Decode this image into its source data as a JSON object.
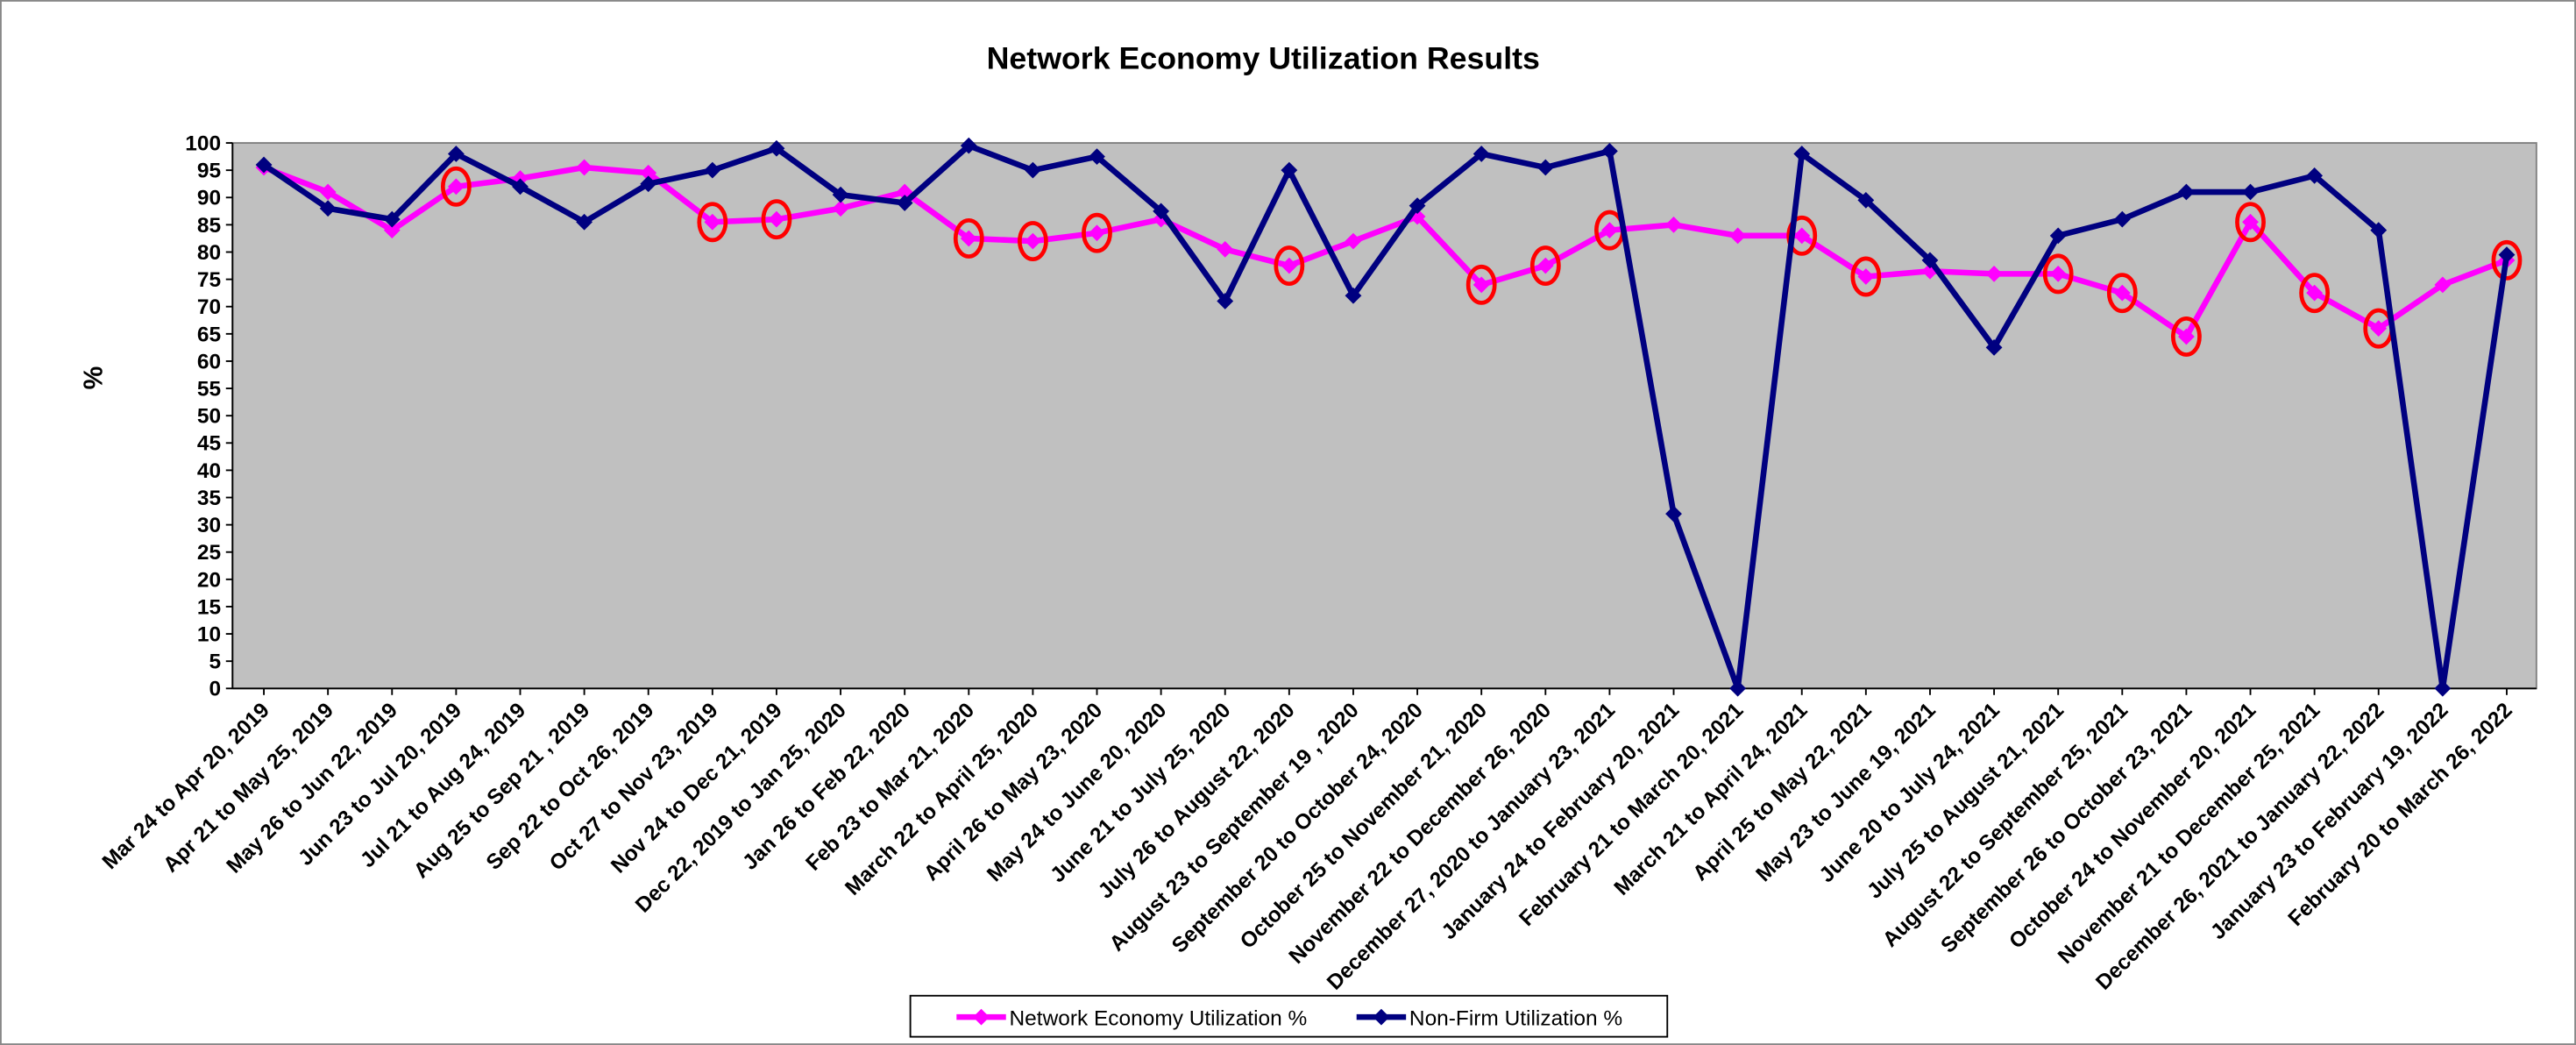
{
  "chart_data": {
    "type": "line",
    "title": "Network Economy Utilization Results",
    "y_label": "%",
    "categories": [
      "Mar 24 to Apr 20, 2019",
      "Apr 21 to May 25, 2019",
      "May 26 to Jun 22, 2019",
      "Jun 23 to Jul 20, 2019",
      "Jul 21 to Aug 24, 2019",
      "Aug 25 to Sep 21 , 2019",
      "Sep 22 to Oct 26, 2019",
      "Oct 27 to Nov 23, 2019",
      "Nov 24 to Dec 21, 2019",
      "Dec 22, 2019 to Jan 25, 2020",
      "Jan 26 to Feb 22, 2020",
      "Feb 23 to Mar 21, 2020",
      "March 22 to April 25, 2020",
      "April 26 to May 23, 2020",
      "May 24 to June 20, 2020",
      "June 21 to July 25, 2020",
      "July 26 to August 22, 2020",
      "August 23 to September 19 , 2020",
      "September 20 to October 24, 2020",
      "October 25 to November 21, 2020",
      "November 22 to December 26, 2020",
      "December 27, 2020 to January 23, 2021",
      "January 24 to February 20, 2021",
      "February 21 to March 20, 2021",
      "March 21 to April 24, 2021",
      "April 25 to May 22, 2021",
      "May 23 to June 19, 2021",
      "June 20 to July 24, 2021",
      "July 25 to August 21, 2021",
      "August 22 to September 25, 2021",
      "September 26 to October 23, 2021",
      "October 24 to November 20, 2021",
      "November 21 to December 25, 2021",
      "December 26, 2021 to January 22, 2022",
      "January 23 to February 19, 2022",
      "February 20 to March 26, 2022"
    ],
    "series": [
      {
        "name": "Network Economy Utilization %",
        "color": "#ff00ff",
        "values": [
          95.5,
          91,
          84,
          92,
          93.5,
          95.5,
          94.5,
          85.5,
          86,
          88,
          91,
          82.5,
          82,
          83.5,
          86,
          80.5,
          77.5,
          82,
          86.5,
          74,
          77.5,
          84,
          85,
          83,
          83,
          75.5,
          76.5,
          76,
          76,
          72.5,
          64.5,
          85.5,
          72.5,
          66,
          74,
          78.5
        ],
        "highlighted": [
          3,
          7,
          8,
          11,
          12,
          13,
          16,
          19,
          20,
          21,
          24,
          25,
          28,
          29,
          30,
          31,
          32,
          33,
          35
        ],
        "highlight_color": "#ff0000"
      },
      {
        "name": "Non-Firm Utilization %",
        "color": "#000080",
        "values": [
          96,
          88,
          86,
          98,
          92,
          85.5,
          92.5,
          95,
          99,
          90.5,
          89,
          99.5,
          95,
          97.5,
          87.5,
          71,
          95,
          72,
          88.5,
          98,
          95.5,
          98.5,
          32,
          0,
          98,
          89.5,
          78.5,
          62.5,
          83,
          86,
          91,
          91,
          94,
          84,
          0,
          79.5
        ]
      }
    ],
    "ylim": [
      0,
      100
    ],
    "yticks": [
      0,
      5,
      10,
      15,
      20,
      25,
      30,
      35,
      40,
      45,
      50,
      55,
      60,
      65,
      70,
      75,
      80,
      85,
      90,
      95,
      100
    ],
    "plot_background": "#c0c0c0",
    "legend": "bottom"
  }
}
